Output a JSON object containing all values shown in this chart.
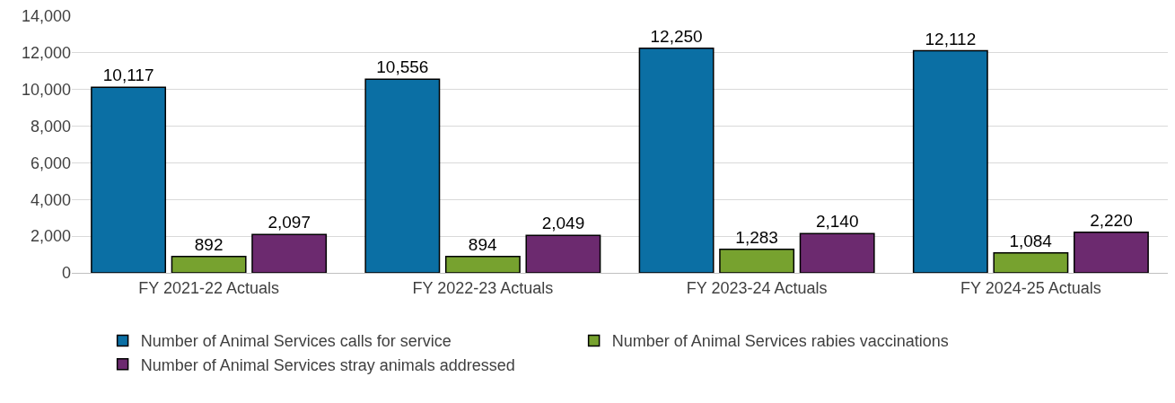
{
  "chart_data": {
    "type": "bar",
    "categories": [
      "FY 2021-22 Actuals",
      "FY 2022-23 Actuals",
      "FY 2023-24 Actuals",
      "FY 2024-25 Actuals"
    ],
    "series": [
      {
        "name": "Number of Animal Services calls for service",
        "color": "#0b6fa4",
        "values": [
          10117,
          10556,
          12250,
          12112
        ],
        "value_labels": [
          "10,117",
          "10,556",
          "12,250",
          "12,112"
        ]
      },
      {
        "name": "Number of Animal Services rabies vaccinations",
        "color": "#77a22f",
        "values": [
          892,
          894,
          1283,
          1084
        ],
        "value_labels": [
          "892",
          "894",
          "1,283",
          "1,084"
        ]
      },
      {
        "name": "Number of Animal Services stray animals addressed",
        "color": "#6c2a6f",
        "values": [
          2097,
          2049,
          2140,
          2220
        ],
        "value_labels": [
          "2,097",
          "2,049",
          "2,140",
          "2,220"
        ]
      }
    ],
    "ylim": [
      0,
      14000
    ],
    "yticks": [
      0,
      {
        "value": 2000,
        "label": "2,000"
      },
      {
        "value": 4000,
        "label": "4,000"
      },
      {
        "value": 6000,
        "label": "6,000"
      },
      {
        "value": 8000,
        "label": "8,000"
      },
      {
        "value": 10000,
        "label": "10,000"
      },
      {
        "value": 12000,
        "label": "12,000"
      },
      {
        "value": 14000,
        "label": "14,000"
      }
    ],
    "grid": "y",
    "legend": "bottom"
  }
}
